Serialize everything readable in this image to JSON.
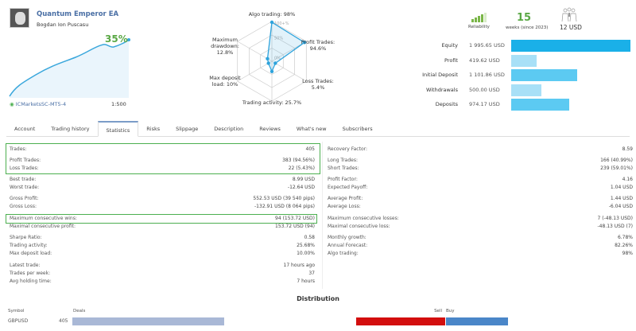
{
  "header": {
    "title": "Quantum Emperor EA",
    "author": "Bogdan Ion Puscasu",
    "growth": "35%",
    "broker": "ICMarketsSC-MT5-4",
    "leverage": "1:500"
  },
  "radar": {
    "axes": [
      {
        "label": "Algo trading: 98%",
        "value": 98
      },
      {
        "label": "Profit Trades: 94.6%",
        "value": 94.6
      },
      {
        "label": "Loss Trades: 5.4%",
        "value": 5.4
      },
      {
        "label": "Trading activity: 25.7%",
        "value": 25.7
      },
      {
        "label": "Max deposit load: 10%",
        "value": 10
      },
      {
        "label": "Maximum drawdown: 12.8%",
        "value": 12.8
      }
    ],
    "ticks": [
      "100+%",
      "50%",
      "0%"
    ]
  },
  "summary": {
    "reliability_label": "Reliability",
    "weeks": "15",
    "weeks_label": "weeks (since 2023)",
    "price": "12 USD"
  },
  "balance": [
    {
      "label": "Equity",
      "value": "1 995.65 USD",
      "amount": 1995.65,
      "color": "#1ab0e8"
    },
    {
      "label": "Profit",
      "value": "419.62 USD",
      "amount": 419.62,
      "color": "#a8e0f7"
    },
    {
      "label": "Initial Deposit",
      "value": "1 101.86 USD",
      "amount": 1101.86,
      "color": "#5ccaf2"
    },
    {
      "label": "Withdrawals",
      "value": "500.00 USD",
      "amount": 500,
      "color": "#a8e0f7"
    },
    {
      "label": "Deposits",
      "value": "974.17 USD",
      "amount": 974.17,
      "color": "#5ccaf2"
    }
  ],
  "tabs": [
    "Account",
    "Trading history",
    "Statistics",
    "Risks",
    "Slippage",
    "Description",
    "Reviews",
    "What's new",
    "Subscribers"
  ],
  "stats_left": [
    {
      "label": "Trades:",
      "value": "405"
    },
    {
      "label": "Profit Trades:",
      "value": "383 (94.56%)"
    },
    {
      "label": "Loss Trades:",
      "value": "22 (5.43%)"
    },
    {
      "label": "Best trade:",
      "value": "8.99 USD"
    },
    {
      "label": "Worst trade:",
      "value": "-12.64 USD",
      "cls": "red"
    },
    {
      "label": "Gross Profit:",
      "value": "552.53 USD (39 540 pips)",
      "cls": "blue"
    },
    {
      "label": "Gross Loss:",
      "value": "-132.91 USD (8 064 pips)",
      "cls": "red"
    },
    {
      "label": "Maximum consecutive wins:",
      "value": "94 (153.72 USD)"
    },
    {
      "label": "Maximal consecutive profit:",
      "value": "153.72 USD (94)"
    },
    {
      "label": "Sharpe Ratio:",
      "value": "0.58"
    },
    {
      "label": "Trading activity:",
      "value": "25.68%"
    },
    {
      "label": "Max deposit load:",
      "value": "10.00%"
    },
    {
      "label": "Latest trade:",
      "value": "17 hours ago"
    },
    {
      "label": "Trades per week:",
      "value": "37"
    },
    {
      "label": "Avg holding time:",
      "value": "7 hours"
    }
  ],
  "stats_right": [
    {
      "label": "Recovery Factor:",
      "value": "8.59"
    },
    {
      "label": "Long Trades:",
      "value": "166 (40.99%)"
    },
    {
      "label": "Short Trades:",
      "value": "239 (59.01%)"
    },
    {
      "label": "Profit Factor:",
      "value": "4.16"
    },
    {
      "label": "Expected Payoff:",
      "value": "1.04 USD",
      "cls": "blue"
    },
    {
      "label": "Average Profit:",
      "value": "1.44 USD",
      "cls": "blue"
    },
    {
      "label": "Average Loss:",
      "value": "-6.04 USD",
      "cls": "red"
    },
    {
      "label": "Maximum consecutive losses:",
      "value": "7 (-48.13 USD)",
      "cls": "red"
    },
    {
      "label": "Maximal consecutive loss:",
      "value": "-48.13 USD (7)",
      "cls": "red"
    },
    {
      "label": "Monthly growth:",
      "value": "6.78%",
      "cls": "blue"
    },
    {
      "label": "Annual Forecast:",
      "value": "82.26%",
      "cls": "blue"
    },
    {
      "label": "Algo trading:",
      "value": "98%"
    }
  ],
  "distribution": {
    "title": "Distribution",
    "symbol_header": "Symbol",
    "deals_header": "Deals",
    "sell_header": "Sell",
    "buy_header": "Buy",
    "rows": [
      {
        "symbol": "GBPUSD",
        "deals": "405",
        "sell": 239,
        "buy": 166
      }
    ],
    "colors": {
      "deals": "#a9b8d6",
      "sell": "#d30e0e",
      "buy": "#4a86c8"
    }
  }
}
